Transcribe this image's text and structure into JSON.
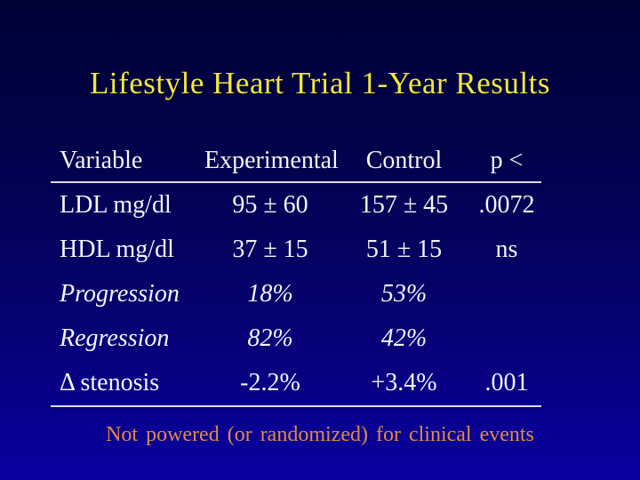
{
  "slide": {
    "title": "Lifestyle Heart Trial 1-Year Results",
    "footnote": "Not powered (or randomized) for clinical events"
  },
  "table": {
    "headers": [
      "Variable",
      "Experimental",
      "Control",
      "p <"
    ],
    "rows": [
      {
        "variable": "LDL mg/dl",
        "experimental": "95 ± 60",
        "control": "157 ± 45",
        "p": ".0072"
      },
      {
        "variable": "HDL mg/dl",
        "experimental": "37 ± 15",
        "control": "51 ± 15",
        "p": "ns"
      },
      {
        "variable": "Progression",
        "experimental": "18%",
        "control": "53%",
        "p": ""
      },
      {
        "variable": "Regression",
        "experimental": "82%",
        "control": "42%",
        "p": ""
      },
      {
        "variable": "Δ stenosis",
        "experimental": "-2.2%",
        "control": "+3.4%",
        "p": ".001"
      }
    ]
  },
  "colors": {
    "title_text": "#f2e63c",
    "table_text": "#f4f4f4",
    "footnote_text": "#e08a44",
    "background_top": "#000135",
    "background_bottom": "#0a00a2",
    "rule": "#d9d9ee"
  }
}
